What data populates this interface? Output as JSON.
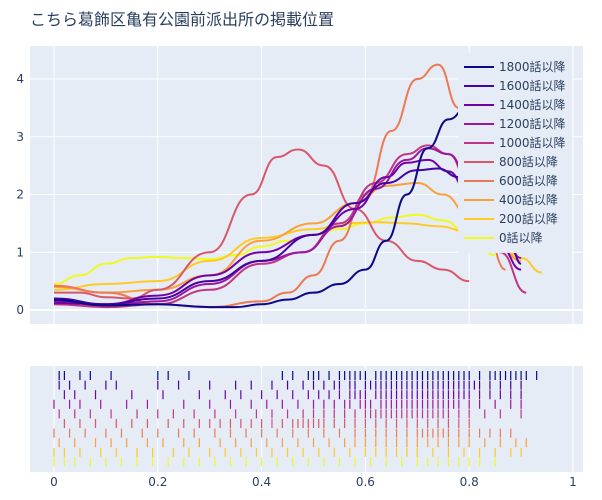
{
  "chart_data": {
    "type": "line",
    "title": "こちら葛飾区亀有公園前派出所の掲載位置",
    "xlabel": "",
    "ylabel": "",
    "xlim": [
      -0.05,
      1.0
    ],
    "ylim": [
      -0.2,
      4.5
    ],
    "x_ticks": [
      "0",
      "0.2",
      "0.4",
      "0.6",
      "0.8",
      "1"
    ],
    "y_ticks": [
      "0",
      "1",
      "2",
      "3",
      "4"
    ],
    "grid": true,
    "legend_position": "top-right",
    "series": [
      {
        "name": "1800話以降",
        "color": "#0d0887",
        "x": [
          0.0,
          0.1,
          0.2,
          0.3,
          0.35,
          0.4,
          0.45,
          0.5,
          0.55,
          0.6,
          0.64,
          0.68,
          0.72,
          0.76,
          0.8
        ],
        "y": [
          0.17,
          0.08,
          0.1,
          0.05,
          0.05,
          0.1,
          0.18,
          0.3,
          0.45,
          0.7,
          1.2,
          2.0,
          2.8,
          3.3,
          3.55
        ],
        "rug": [
          0.01,
          0.02,
          0.05,
          0.07,
          0.11,
          0.2,
          0.22,
          0.26,
          0.44,
          0.46,
          0.49,
          0.5,
          0.51,
          0.53,
          0.55,
          0.56,
          0.57,
          0.58,
          0.59,
          0.6,
          0.62,
          0.63,
          0.64,
          0.65,
          0.66,
          0.67,
          0.68,
          0.69,
          0.7,
          0.71,
          0.72,
          0.73,
          0.74,
          0.75,
          0.76,
          0.77,
          0.78,
          0.79,
          0.8,
          0.82,
          0.84,
          0.85,
          0.86,
          0.87,
          0.88,
          0.89,
          0.9,
          0.91,
          0.93
        ]
      },
      {
        "name": "1600話以降",
        "color": "#46039f",
        "x": [
          0.0,
          0.1,
          0.2,
          0.3,
          0.4,
          0.5,
          0.58,
          0.64,
          0.7,
          0.74,
          0.78,
          0.83,
          0.88,
          0.9
        ],
        "y": [
          0.2,
          0.1,
          0.2,
          0.5,
          0.85,
          1.3,
          1.85,
          2.2,
          2.42,
          2.45,
          2.3,
          1.8,
          1.1,
          0.8
        ],
        "rug": [
          0.01,
          0.03,
          0.06,
          0.1,
          0.12,
          0.2,
          0.24,
          0.3,
          0.35,
          0.38,
          0.42,
          0.45,
          0.48,
          0.5,
          0.52,
          0.54,
          0.55,
          0.57,
          0.58,
          0.6,
          0.61,
          0.62,
          0.63,
          0.64,
          0.65,
          0.66,
          0.67,
          0.68,
          0.69,
          0.7,
          0.71,
          0.72,
          0.73,
          0.74,
          0.75,
          0.76,
          0.77,
          0.78,
          0.79,
          0.8,
          0.81,
          0.82,
          0.84,
          0.86,
          0.88,
          0.9
        ]
      },
      {
        "name": "1400話以降",
        "color": "#7201a8",
        "x": [
          0.0,
          0.1,
          0.2,
          0.3,
          0.4,
          0.5,
          0.58,
          0.64,
          0.68,
          0.72,
          0.76,
          0.8,
          0.86,
          0.9
        ],
        "y": [
          0.12,
          0.1,
          0.25,
          0.6,
          1.0,
          1.3,
          1.75,
          2.3,
          2.55,
          2.6,
          2.4,
          2.0,
          1.1,
          0.7
        ],
        "rug": [
          0.02,
          0.04,
          0.08,
          0.15,
          0.21,
          0.28,
          0.33,
          0.36,
          0.4,
          0.43,
          0.46,
          0.49,
          0.51,
          0.53,
          0.55,
          0.57,
          0.58,
          0.59,
          0.6,
          0.62,
          0.63,
          0.64,
          0.65,
          0.66,
          0.67,
          0.68,
          0.69,
          0.7,
          0.71,
          0.72,
          0.73,
          0.74,
          0.75,
          0.76,
          0.77,
          0.78,
          0.79,
          0.8,
          0.82,
          0.84,
          0.86,
          0.88,
          0.9
        ]
      },
      {
        "name": "1200話以降",
        "color": "#9c179e",
        "x": [
          0.0,
          0.1,
          0.2,
          0.3,
          0.4,
          0.48,
          0.55,
          0.62,
          0.68,
          0.72,
          0.76,
          0.8,
          0.86,
          0.9
        ],
        "y": [
          0.15,
          0.08,
          0.15,
          0.45,
          0.85,
          1.0,
          1.45,
          2.1,
          2.6,
          2.8,
          2.7,
          2.3,
          1.4,
          0.9
        ],
        "rug": [
          0.0,
          0.03,
          0.05,
          0.09,
          0.14,
          0.18,
          0.25,
          0.3,
          0.34,
          0.38,
          0.41,
          0.44,
          0.47,
          0.5,
          0.52,
          0.54,
          0.56,
          0.57,
          0.59,
          0.6,
          0.61,
          0.63,
          0.64,
          0.65,
          0.66,
          0.67,
          0.68,
          0.69,
          0.7,
          0.71,
          0.72,
          0.73,
          0.74,
          0.75,
          0.76,
          0.77,
          0.78,
          0.8,
          0.82,
          0.85,
          0.88,
          0.9
        ]
      },
      {
        "name": "1000話以降",
        "color": "#bd3786",
        "x": [
          0.0,
          0.1,
          0.2,
          0.3,
          0.4,
          0.48,
          0.55,
          0.62,
          0.68,
          0.72,
          0.76,
          0.8,
          0.86,
          0.91
        ],
        "y": [
          0.1,
          0.05,
          0.1,
          0.35,
          0.8,
          1.0,
          1.5,
          2.2,
          2.7,
          2.85,
          2.7,
          2.2,
          1.0,
          0.3
        ],
        "rug": [
          0.01,
          0.04,
          0.07,
          0.11,
          0.16,
          0.2,
          0.23,
          0.27,
          0.31,
          0.35,
          0.39,
          0.42,
          0.45,
          0.48,
          0.5,
          0.52,
          0.54,
          0.56,
          0.58,
          0.6,
          0.61,
          0.62,
          0.63,
          0.64,
          0.65,
          0.66,
          0.67,
          0.68,
          0.69,
          0.7,
          0.71,
          0.72,
          0.73,
          0.74,
          0.75,
          0.76,
          0.78,
          0.8,
          0.83,
          0.86,
          0.9
        ]
      },
      {
        "name": "800話以降",
        "color": "#d8576b",
        "x": [
          0.0,
          0.05,
          0.1,
          0.15,
          0.2,
          0.3,
          0.38,
          0.43,
          0.47,
          0.52,
          0.58,
          0.64,
          0.7,
          0.75,
          0.8
        ],
        "y": [
          0.3,
          0.3,
          0.22,
          0.2,
          0.35,
          1.0,
          2.0,
          2.65,
          2.78,
          2.5,
          1.75,
          1.2,
          0.85,
          0.7,
          0.5
        ],
        "rug": [
          0.02,
          0.05,
          0.08,
          0.12,
          0.15,
          0.18,
          0.22,
          0.25,
          0.28,
          0.3,
          0.32,
          0.34,
          0.36,
          0.38,
          0.4,
          0.42,
          0.44,
          0.46,
          0.47,
          0.48,
          0.49,
          0.5,
          0.51,
          0.52,
          0.54,
          0.56,
          0.58,
          0.6,
          0.62,
          0.64,
          0.66,
          0.68,
          0.7,
          0.72,
          0.74,
          0.76,
          0.78,
          0.8
        ]
      },
      {
        "name": "600話以降",
        "color": "#ed7953",
        "x": [
          0.0,
          0.1,
          0.2,
          0.3,
          0.4,
          0.45,
          0.5,
          0.55,
          0.6,
          0.65,
          0.7,
          0.74,
          0.78,
          0.82,
          0.87
        ],
        "y": [
          0.42,
          0.3,
          0.1,
          0.05,
          0.15,
          0.3,
          0.6,
          1.2,
          2.0,
          3.1,
          4.0,
          4.25,
          3.5,
          2.0,
          0.7
        ],
        "rug": [
          0.0,
          0.03,
          0.06,
          0.1,
          0.13,
          0.17,
          0.2,
          0.24,
          0.27,
          0.31,
          0.34,
          0.37,
          0.4,
          0.43,
          0.46,
          0.49,
          0.52,
          0.55,
          0.58,
          0.6,
          0.62,
          0.64,
          0.66,
          0.68,
          0.7,
          0.71,
          0.72,
          0.73,
          0.74,
          0.75,
          0.76,
          0.78,
          0.8,
          0.82,
          0.84,
          0.86,
          0.88
        ]
      },
      {
        "name": "400話以降",
        "color": "#fb9f3a",
        "x": [
          0.0,
          0.1,
          0.2,
          0.3,
          0.4,
          0.5,
          0.58,
          0.64,
          0.7,
          0.75,
          0.8,
          0.85,
          0.9
        ],
        "y": [
          0.4,
          0.3,
          0.35,
          0.6,
          1.2,
          1.5,
          1.85,
          2.15,
          2.2,
          2.0,
          1.65,
          1.2,
          0.85
        ],
        "rug": [
          0.01,
          0.04,
          0.08,
          0.11,
          0.14,
          0.18,
          0.21,
          0.25,
          0.28,
          0.32,
          0.35,
          0.38,
          0.41,
          0.44,
          0.47,
          0.5,
          0.53,
          0.56,
          0.58,
          0.6,
          0.62,
          0.64,
          0.66,
          0.68,
          0.7,
          0.72,
          0.74,
          0.76,
          0.78,
          0.8,
          0.83,
          0.86,
          0.89,
          0.91
        ]
      },
      {
        "name": "200話以降",
        "color": "#fdca26",
        "x": [
          0.0,
          0.1,
          0.2,
          0.3,
          0.4,
          0.5,
          0.56,
          0.62,
          0.68,
          0.74,
          0.8,
          0.86,
          0.9,
          0.94
        ],
        "y": [
          0.35,
          0.45,
          0.5,
          0.85,
          1.25,
          1.4,
          1.5,
          1.52,
          1.5,
          1.45,
          1.35,
          1.1,
          0.9,
          0.65
        ],
        "rug": [
          0.0,
          0.02,
          0.05,
          0.09,
          0.12,
          0.16,
          0.19,
          0.23,
          0.26,
          0.3,
          0.33,
          0.36,
          0.39,
          0.42,
          0.45,
          0.48,
          0.51,
          0.54,
          0.57,
          0.6,
          0.62,
          0.64,
          0.66,
          0.68,
          0.7,
          0.73,
          0.76,
          0.79,
          0.82,
          0.85,
          0.88,
          0.9
        ]
      },
      {
        "name": "0話以降",
        "color": "#f0f921",
        "x": [
          0.0,
          0.05,
          0.1,
          0.15,
          0.2,
          0.25,
          0.3,
          0.35,
          0.4,
          0.45,
          0.5,
          0.55,
          0.6,
          0.65,
          0.7,
          0.75,
          0.8,
          0.85
        ],
        "y": [
          0.45,
          0.6,
          0.8,
          0.9,
          0.92,
          0.9,
          0.88,
          0.95,
          1.1,
          1.2,
          1.3,
          1.4,
          1.5,
          1.6,
          1.65,
          1.55,
          1.3,
          0.95
        ],
        "rug": [
          0.0,
          0.02,
          0.04,
          0.07,
          0.1,
          0.13,
          0.16,
          0.19,
          0.22,
          0.25,
          0.28,
          0.31,
          0.34,
          0.37,
          0.4,
          0.43,
          0.46,
          0.49,
          0.52,
          0.55,
          0.58,
          0.61,
          0.64,
          0.67,
          0.7,
          0.72,
          0.74,
          0.76,
          0.78,
          0.8,
          0.82,
          0.85
        ]
      }
    ]
  }
}
